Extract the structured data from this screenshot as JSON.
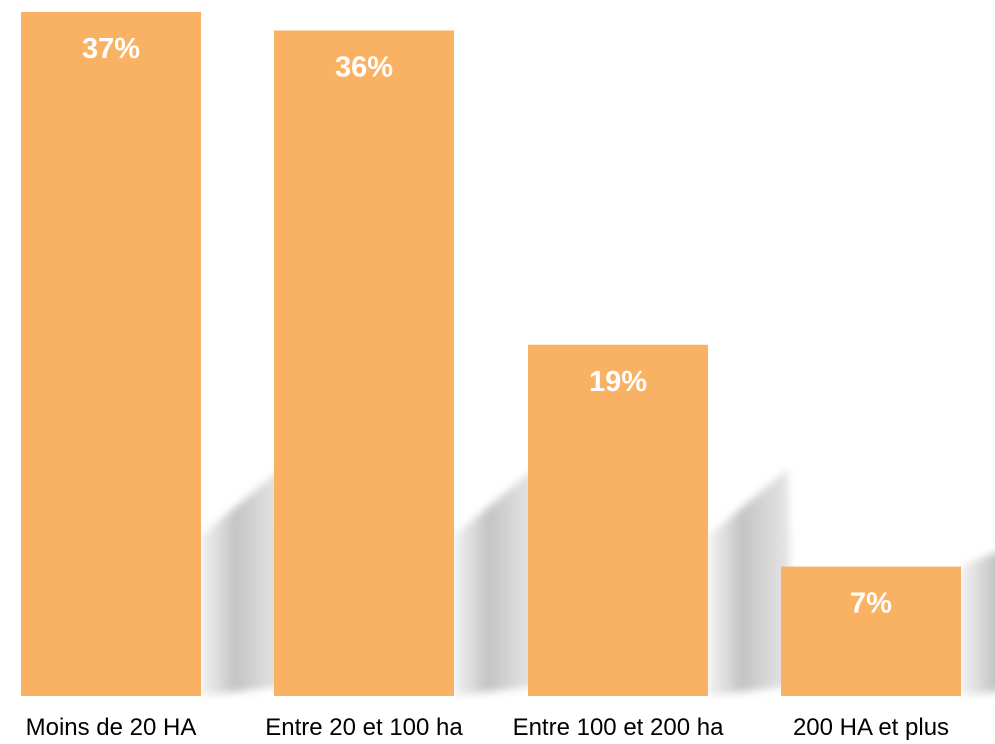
{
  "chart_data": {
    "type": "bar",
    "categories": [
      "Moins de 20 HA",
      "Entre 20 et 100 ha",
      "Entre 100 et 200 ha",
      "200 HA et plus"
    ],
    "values": [
      37,
      36,
      19,
      7
    ],
    "value_labels": [
      "37%",
      "36%",
      "19%",
      "7%"
    ],
    "ylim": [
      0,
      37
    ],
    "grid": false,
    "legend": "none",
    "colors": {
      "bar": "#F9B163",
      "value_label": "#FFFFFF",
      "category_label": "#000000",
      "shadow": "#BDBDBD"
    }
  }
}
